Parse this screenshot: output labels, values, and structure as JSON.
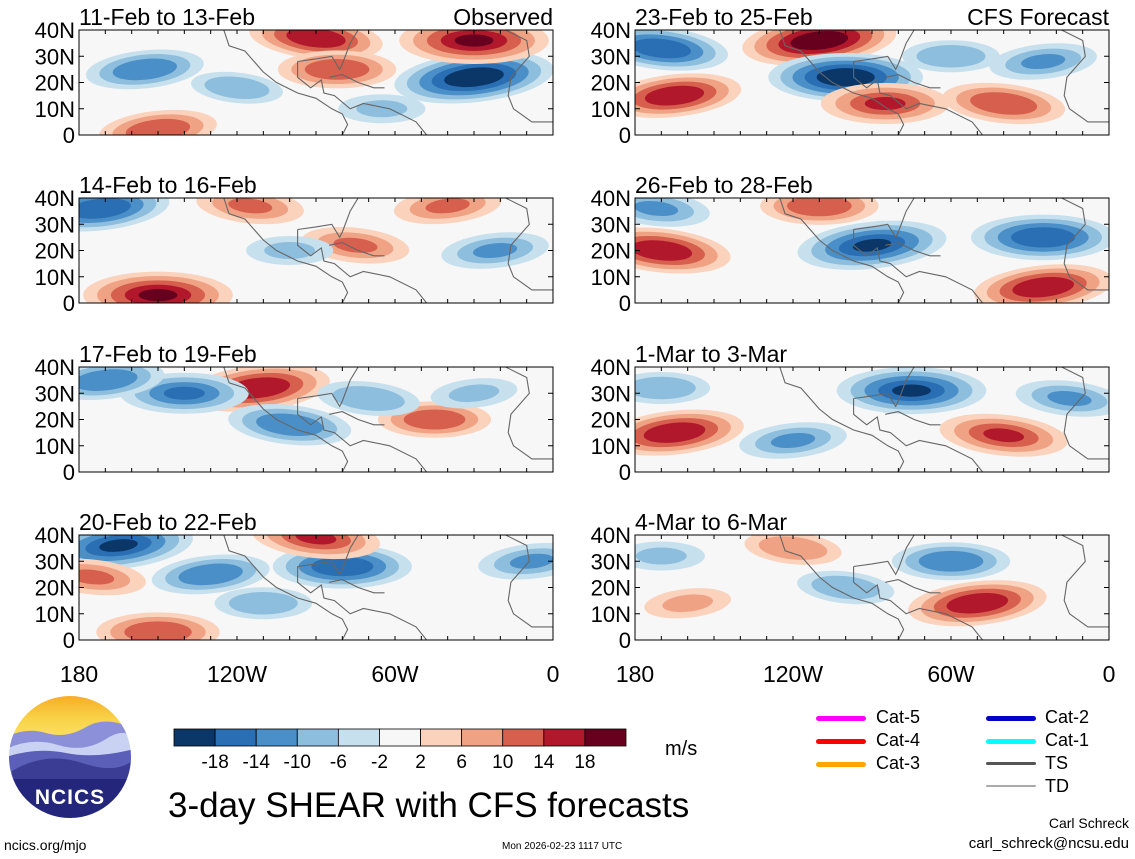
{
  "title": "3-day SHEAR with CFS forecasts",
  "source_url": "ncics.org/mjo",
  "timestamp": "Mon 2026-02-23 1117 UTC",
  "author": "Carl Schreck",
  "email": "carl_schreck@ncsu.edu",
  "logo_text": "NCICS",
  "units": "m/s",
  "chart_data": {
    "type": "heatmap",
    "variable": "vertical wind shear anomaly",
    "x_tick_labels": [
      "180",
      "120W",
      "60W",
      "0"
    ],
    "x_tick_values": [
      -180,
      -120,
      -60,
      0
    ],
    "y_tick_labels": [
      "40N",
      "30N",
      "20N",
      "10N",
      "0"
    ],
    "y_tick_values": [
      40,
      30,
      20,
      10,
      0
    ],
    "xlim": [
      -180,
      0
    ],
    "ylim": [
      0,
      40
    ],
    "colorbar": {
      "levels": [
        -18,
        -14,
        -10,
        -6,
        -2,
        2,
        6,
        10,
        14,
        18
      ],
      "tick_labels": [
        "-18",
        "-14",
        "-10",
        "-6",
        "-2",
        "2",
        "6",
        "10",
        "14",
        "18"
      ],
      "colors": [
        "#0b3768",
        "#2a6eb3",
        "#4a8fc8",
        "#8ebedd",
        "#c7e0ee",
        "#f7f7f7",
        "#fbd2bc",
        "#f0a285",
        "#d6604d",
        "#b2182b",
        "#67001f"
      ]
    },
    "panels": [
      {
        "label": "11-Feb to 13-Feb",
        "tag": "Observed",
        "column": "left",
        "row": 0,
        "features": [
          {
            "lon": -30,
            "lat": 22,
            "value": -20
          },
          {
            "lon": -30,
            "lat": 36,
            "value": 18
          },
          {
            "lon": -90,
            "lat": 37,
            "value": 15
          },
          {
            "lon": -155,
            "lat": 25,
            "value": -12
          },
          {
            "lon": -82,
            "lat": 25,
            "value": 12
          },
          {
            "lon": -120,
            "lat": 18,
            "value": -7
          },
          {
            "lon": -150,
            "lat": 2,
            "value": 12
          },
          {
            "lon": -65,
            "lat": 10,
            "value": -6
          }
        ]
      },
      {
        "label": "14-Feb to 16-Feb",
        "tag": "",
        "column": "left",
        "row": 1,
        "features": [
          {
            "lon": -172,
            "lat": 36,
            "value": -16
          },
          {
            "lon": -150,
            "lat": 3,
            "value": 18
          },
          {
            "lon": -75,
            "lat": 22,
            "value": 10
          },
          {
            "lon": -22,
            "lat": 20,
            "value": -10
          },
          {
            "lon": -100,
            "lat": 20,
            "value": -6
          },
          {
            "lon": -115,
            "lat": 37,
            "value": 10
          },
          {
            "lon": -40,
            "lat": 37,
            "value": 10
          }
        ]
      },
      {
        "label": "17-Feb to 19-Feb",
        "tag": "",
        "column": "left",
        "row": 2,
        "features": [
          {
            "lon": -112,
            "lat": 32,
            "value": 17
          },
          {
            "lon": -140,
            "lat": 30,
            "value": -14
          },
          {
            "lon": -100,
            "lat": 18,
            "value": -13
          },
          {
            "lon": -170,
            "lat": 35,
            "value": -12
          },
          {
            "lon": -45,
            "lat": 20,
            "value": 11
          },
          {
            "lon": -70,
            "lat": 28,
            "value": -9
          },
          {
            "lon": -30,
            "lat": 30,
            "value": -6
          }
        ]
      },
      {
        "label": "20-Feb to 22-Feb",
        "tag": "",
        "column": "left",
        "row": 3,
        "features": [
          {
            "lon": -165,
            "lat": 36,
            "value": -18
          },
          {
            "lon": -80,
            "lat": 28,
            "value": -16
          },
          {
            "lon": -90,
            "lat": 39,
            "value": 14
          },
          {
            "lon": -130,
            "lat": 25,
            "value": -12
          },
          {
            "lon": -150,
            "lat": 3,
            "value": 13
          },
          {
            "lon": -175,
            "lat": 24,
            "value": 10
          },
          {
            "lon": -8,
            "lat": 30,
            "value": -10
          },
          {
            "lon": -110,
            "lat": 14,
            "value": -8
          }
        ]
      },
      {
        "label": "23-Feb to 25-Feb",
        "tag": "CFS Forecast",
        "column": "right",
        "row": 0,
        "features": [
          {
            "lon": -110,
            "lat": 36,
            "value": 19
          },
          {
            "lon": -100,
            "lat": 22,
            "value": -19
          },
          {
            "lon": -170,
            "lat": 33,
            "value": -15
          },
          {
            "lon": -165,
            "lat": 15,
            "value": 15
          },
          {
            "lon": -85,
            "lat": 12,
            "value": 14
          },
          {
            "lon": -40,
            "lat": 12,
            "value": 13
          },
          {
            "lon": -25,
            "lat": 28,
            "value": -10
          },
          {
            "lon": -60,
            "lat": 30,
            "value": -8
          }
        ]
      },
      {
        "label": "26-Feb to 28-Feb",
        "tag": "",
        "column": "right",
        "row": 1,
        "features": [
          {
            "lon": -90,
            "lat": 22,
            "value": -18
          },
          {
            "lon": -25,
            "lat": 25,
            "value": -17
          },
          {
            "lon": -170,
            "lat": 20,
            "value": 16
          },
          {
            "lon": -25,
            "lat": 6,
            "value": 16
          },
          {
            "lon": -110,
            "lat": 37,
            "value": 12
          },
          {
            "lon": -172,
            "lat": 36,
            "value": -10
          }
        ]
      },
      {
        "label": "1-Mar to 3-Mar",
        "tag": "",
        "column": "right",
        "row": 2,
        "features": [
          {
            "lon": -165,
            "lat": 15,
            "value": 16
          },
          {
            "lon": -75,
            "lat": 31,
            "value": -18
          },
          {
            "lon": -40,
            "lat": 14,
            "value": 14
          },
          {
            "lon": -120,
            "lat": 12,
            "value": -10
          },
          {
            "lon": -170,
            "lat": 32,
            "value": -8
          },
          {
            "lon": -15,
            "lat": 28,
            "value": -10
          }
        ]
      },
      {
        "label": "4-Mar to 6-Mar",
        "tag": "",
        "column": "right",
        "row": 3,
        "features": [
          {
            "lon": -50,
            "lat": 14,
            "value": 16
          },
          {
            "lon": -60,
            "lat": 30,
            "value": -12
          },
          {
            "lon": -120,
            "lat": 35,
            "value": 8
          },
          {
            "lon": -160,
            "lat": 14,
            "value": 6
          },
          {
            "lon": -170,
            "lat": 32,
            "value": -6
          },
          {
            "lon": -100,
            "lat": 20,
            "value": -8
          }
        ]
      }
    ]
  },
  "legend": [
    {
      "label": "Cat-5",
      "color": "#ff00ff"
    },
    {
      "label": "Cat-4",
      "color": "#ff0000"
    },
    {
      "label": "Cat-3",
      "color": "#ffa500"
    },
    {
      "label": "Cat-2",
      "color": "#0000cc"
    },
    {
      "label": "Cat-1",
      "color": "#00ffff"
    },
    {
      "label": "TS",
      "color": "#555555"
    },
    {
      "label": "TD",
      "color": "#aaaaaa"
    }
  ]
}
